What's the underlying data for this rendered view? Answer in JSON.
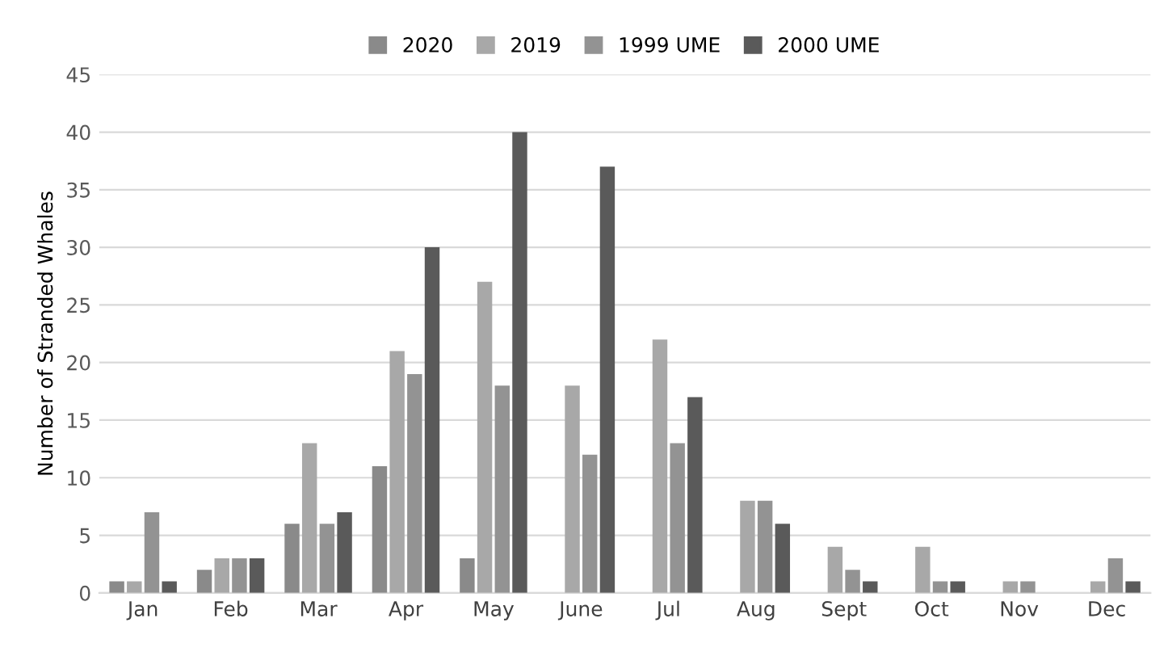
{
  "chart_data": {
    "type": "bar",
    "ylabel": "Number of Stranded Whales",
    "categories": [
      "Jan",
      "Feb",
      "Mar",
      "Apr",
      "May",
      "June",
      "Jul",
      "Aug",
      "Sept",
      "Oct",
      "Nov",
      "Dec"
    ],
    "series": [
      {
        "name": "2020",
        "color": "#8a8a8a",
        "values": [
          1,
          2,
          6,
          11,
          3,
          null,
          null,
          null,
          null,
          null,
          null,
          null
        ]
      },
      {
        "name": "2019",
        "color": "#a8a8a8",
        "values": [
          1,
          3,
          13,
          21,
          27,
          18,
          22,
          8,
          4,
          4,
          1,
          1
        ]
      },
      {
        "name": "1999 UME",
        "color": "#939393",
        "values": [
          7,
          3,
          6,
          19,
          18,
          12,
          13,
          8,
          2,
          1,
          1,
          3
        ]
      },
      {
        "name": "2000 UME",
        "color": "#5a5a5a",
        "values": [
          1,
          3,
          7,
          30,
          40,
          37,
          17,
          6,
          1,
          1,
          null,
          1
        ]
      }
    ],
    "ylim": [
      0,
      45
    ],
    "yticks": [
      0,
      5,
      10,
      15,
      20,
      25,
      30,
      35,
      40,
      45
    ],
    "grid": "y",
    "legend": "top"
  }
}
